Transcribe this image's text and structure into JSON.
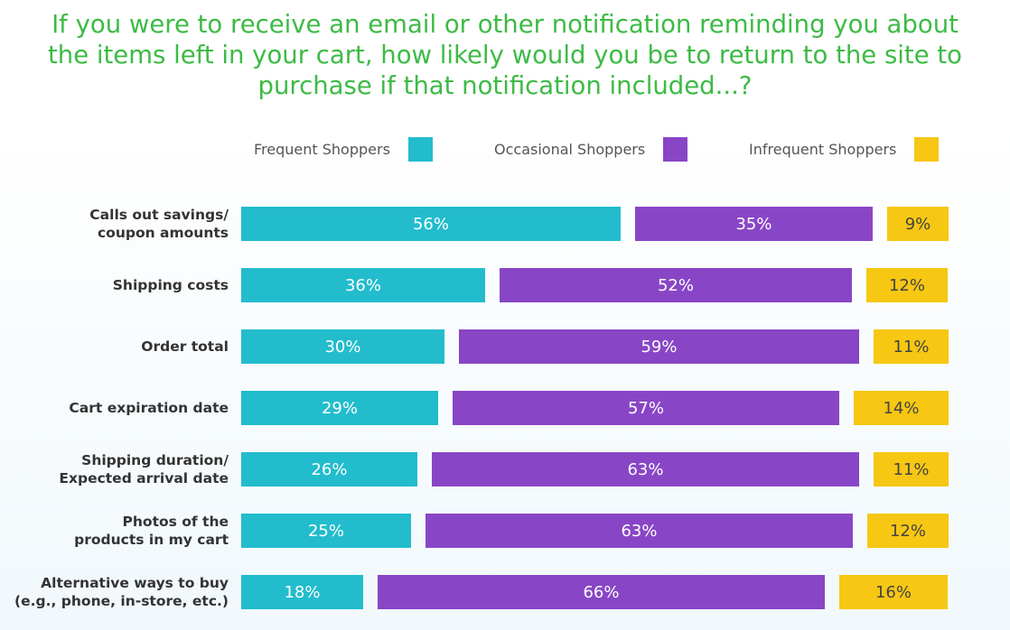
{
  "chart_data": {
    "type": "bar",
    "stacked": true,
    "orientation": "horizontal",
    "title": "If you were to receive an email or other notification reminding you about the items left in your cart, how likely would you be to return to the site to purchase if that notification included...?",
    "legend_position": "top-right",
    "categories": [
      "Calls out savings/\ncoupon amounts",
      "Shipping costs",
      "Order total",
      "Cart expiration date",
      "Shipping duration/\nExpected arrival date",
      "Photos of the\nproducts in my cart",
      "Alternative ways to buy\n(e.g., phone, in-store, etc.)"
    ],
    "series": [
      {
        "name": "Frequent Shoppers",
        "color": "#22bccd",
        "values": [
          56,
          36,
          30,
          29,
          26,
          25,
          18
        ],
        "labels": [
          "56%",
          "36%",
          "30%",
          "29%",
          "26%",
          "25%",
          "18%"
        ]
      },
      {
        "name": "Occasional Shoppers",
        "color": "#8846c6",
        "values": [
          35,
          52,
          59,
          57,
          63,
          63,
          66
        ],
        "labels": [
          "35%",
          "52%",
          "59%",
          "57%",
          "63%",
          "63%",
          "66%"
        ]
      },
      {
        "name": "Infrequent Shoppers",
        "color": "#f6c713",
        "values": [
          9,
          12,
          11,
          14,
          11,
          12,
          16
        ],
        "labels": [
          "9%",
          "12%",
          "11%",
          "14%",
          "11%",
          "12%",
          "16%"
        ]
      }
    ],
    "colors": {
      "title": "#3dbb45"
    }
  }
}
